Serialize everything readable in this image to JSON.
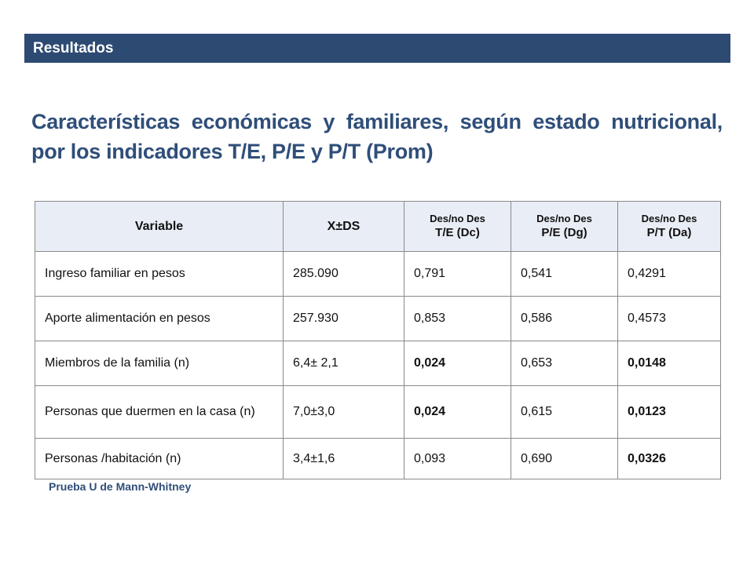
{
  "banner": {
    "label": "Resultados",
    "color": "#2d4a73"
  },
  "title": {
    "line1": "Características económicas y familiares,  según estado nutricional,",
    "line2": "por los indicadores T/E, P/E y P/T (Prom)",
    "color": "#2f4e79"
  },
  "table": {
    "headers": [
      {
        "main": "Variable"
      },
      {
        "main": "X±DS"
      },
      {
        "top": "Des/no Des",
        "bottom": "T/E (Dc)"
      },
      {
        "top": "Des/no Des",
        "bottom": "P/E (Dg)"
      },
      {
        "top": "Des/no Des",
        "bottom": "P/T (Da)"
      }
    ],
    "rows": [
      [
        "Ingreso familiar en pesos",
        "285.090",
        "0,791",
        "0,541",
        "0,4291"
      ],
      [
        "Aporte alimentación  en pesos",
        "257.930",
        "0,853",
        "0,586",
        "0,4573"
      ],
      [
        "Miembros de la familia (n)",
        "6,4± 2,1",
        "0,024",
        "0,653",
        "0,0148"
      ],
      [
        "Personas que duermen en la casa (n)",
        "7,0±3,0",
        "0,024",
        "0,615",
        "0,0123"
      ],
      [
        "Personas /habitación (n)",
        "3,4±1,6",
        "0,093",
        "0,690",
        "0,0326"
      ]
    ]
  },
  "note": "Prueba U de Mann-Whitney"
}
